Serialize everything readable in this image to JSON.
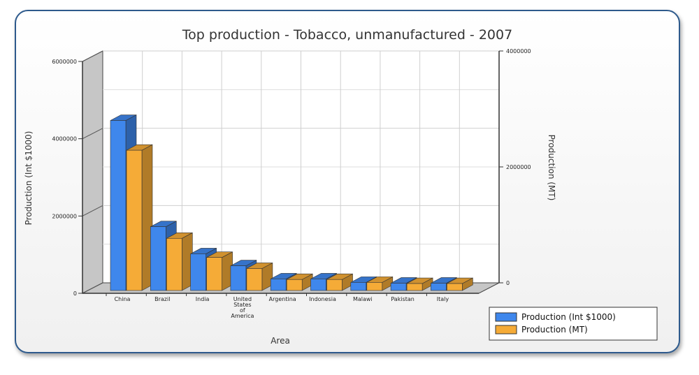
{
  "chart_data": {
    "type": "bar",
    "title": "Top production - Tobacco, unmanufactured - 2007",
    "xlabel": "Area",
    "ylabel_left": "Production (Int $1000)",
    "ylabel_right": "Production (MT)",
    "categories": [
      "China",
      "Brazil",
      "India",
      "United States of America",
      "Argentina",
      "Indonesia",
      "Malawi",
      "Pakistan",
      "Italy"
    ],
    "category_lines": [
      [
        "China"
      ],
      [
        "Brazil"
      ],
      [
        "India"
      ],
      [
        "United",
        "States",
        "of",
        "America"
      ],
      [
        "Argentina"
      ],
      [
        "Indonesia"
      ],
      [
        "Malawi"
      ],
      [
        "Pakistan"
      ],
      [
        "Italy"
      ]
    ],
    "series": [
      {
        "name": "Production (Int $1000)",
        "axis": "left",
        "color": "#3f87ec",
        "values": [
          4400000,
          1650000,
          950000,
          640000,
          300000,
          300000,
          210000,
          190000,
          190000
        ]
      },
      {
        "name": "Production (MT)",
        "axis": "right",
        "color": "#f5ab37",
        "values": [
          2420000,
          900000,
          570000,
          380000,
          190000,
          190000,
          140000,
          120000,
          120000
        ]
      }
    ],
    "ylim_left": [
      0,
      6000000
    ],
    "yticks_left": [
      0,
      2000000,
      4000000,
      6000000
    ],
    "ylim_right": [
      0,
      4000000
    ],
    "yticks_right": [
      0,
      2000000,
      4000000
    ],
    "grid": true,
    "legend_position": "bottom-right"
  }
}
